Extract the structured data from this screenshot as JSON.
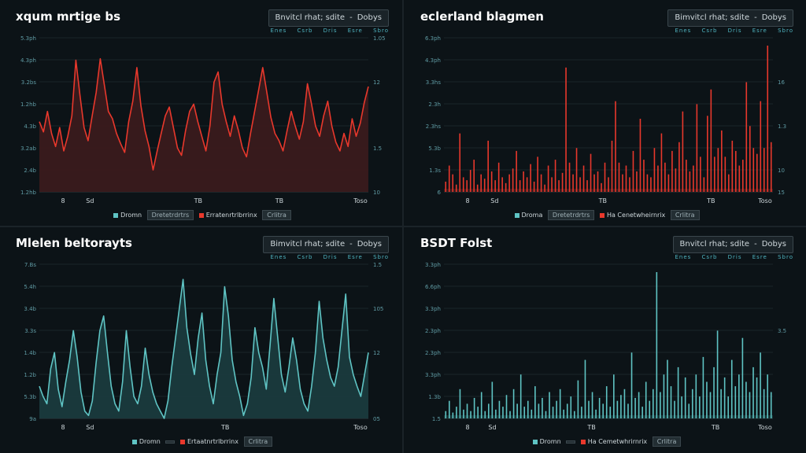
{
  "panels": [
    {
      "title": "xqum mrtige bs",
      "range": {
        "label": "Bnvitcl rhat; sdite",
        "option": "Dobys"
      },
      "subrow": [
        "Enes",
        "Csrb",
        "Dris",
        "Esre",
        "Sbro"
      ],
      "legend": {
        "left_label": "Dromn",
        "left_chip": "Dretetrdrtrs",
        "right_label": "Erratenrtrlbrrinx",
        "right_chip": "Crlitra"
      },
      "accent": "#e8382c",
      "fill": "#3a1a1c",
      "chart_data": {
        "type": "area",
        "ylabels_left": [
          "5.3ph",
          "4.3ph",
          "3.2bs",
          "1.2hb",
          "4.3b",
          "3.2ab",
          "2.4b",
          "1.2hb"
        ],
        "ylabels_right": [
          "1.05",
          "",
          "12",
          "",
          "",
          "1.5",
          "",
          "10"
        ],
        "xlabels": [
          "8",
          "Sd",
          "",
          "",
          "",
          "TB",
          "",
          "",
          "TB",
          "",
          "",
          "Toso"
        ],
        "values": [
          0.48,
          0.41,
          0.55,
          0.4,
          0.31,
          0.44,
          0.28,
          0.38,
          0.52,
          0.9,
          0.66,
          0.44,
          0.35,
          0.52,
          0.68,
          0.91,
          0.73,
          0.55,
          0.5,
          0.4,
          0.33,
          0.27,
          0.48,
          0.62,
          0.85,
          0.59,
          0.42,
          0.31,
          0.15,
          0.28,
          0.4,
          0.52,
          0.58,
          0.44,
          0.3,
          0.25,
          0.42,
          0.55,
          0.6,
          0.48,
          0.38,
          0.28,
          0.45,
          0.75,
          0.82,
          0.6,
          0.48,
          0.38,
          0.52,
          0.42,
          0.3,
          0.24,
          0.4,
          0.55,
          0.7,
          0.85,
          0.68,
          0.51,
          0.4,
          0.35,
          0.28,
          0.42,
          0.55,
          0.45,
          0.36,
          0.48,
          0.74,
          0.6,
          0.45,
          0.38,
          0.52,
          0.62,
          0.45,
          0.34,
          0.28,
          0.4,
          0.31,
          0.5,
          0.38,
          0.47,
          0.61,
          0.72
        ]
      }
    },
    {
      "title": "eclerland blagmen",
      "range": {
        "label": "Bimvitcl rhat; sdite",
        "option": "Dobys"
      },
      "subrow": [
        "Enes",
        "Csrb",
        "Dris",
        "Esre",
        "Sbro"
      ],
      "legend": {
        "left_label": "Droma",
        "left_chip": "Dretetrdrtrs",
        "right_label": "Ha Cenetwheirnrix",
        "right_chip": "Crlitra"
      },
      "accent": "#e8382c",
      "fill": "#3a1a1c",
      "chart_data": {
        "type": "bar",
        "ylabels_left": [
          "6.3ph",
          "4.3ph",
          "3.3hs",
          "2.3h",
          "2.3hs",
          "5.3b",
          "1.3s",
          "6"
        ],
        "ylabels_right": [
          "",
          "",
          "16",
          "",
          "1.3",
          "",
          "10",
          "15"
        ],
        "xlabels": [
          "8",
          "Sd",
          "",
          "",
          "",
          "TB",
          "",
          "",
          "",
          "TB",
          "",
          "Toso"
        ],
        "values": [
          0.07,
          0.18,
          0.12,
          0.05,
          0.4,
          0.1,
          0.08,
          0.15,
          0.22,
          0.05,
          0.12,
          0.09,
          0.35,
          0.14,
          0.08,
          0.2,
          0.1,
          0.06,
          0.12,
          0.16,
          0.28,
          0.08,
          0.14,
          0.1,
          0.19,
          0.07,
          0.24,
          0.12,
          0.05,
          0.18,
          0.1,
          0.22,
          0.08,
          0.13,
          0.85,
          0.2,
          0.12,
          0.3,
          0.1,
          0.18,
          0.08,
          0.26,
          0.12,
          0.14,
          0.06,
          0.2,
          0.1,
          0.35,
          0.62,
          0.2,
          0.12,
          0.18,
          0.1,
          0.28,
          0.14,
          0.5,
          0.22,
          0.12,
          0.1,
          0.3,
          0.18,
          0.4,
          0.2,
          0.12,
          0.28,
          0.16,
          0.34,
          0.55,
          0.22,
          0.14,
          0.18,
          0.6,
          0.24,
          0.1,
          0.52,
          0.7,
          0.24,
          0.3,
          0.42,
          0.24,
          0.12,
          0.35,
          0.28,
          0.18,
          0.22,
          0.75,
          0.45,
          0.3,
          0.26,
          0.62,
          0.3,
          1.0,
          0.34
        ]
      }
    },
    {
      "title": "Mlelen beltorayts",
      "range": {
        "label": "Bimvitcl rhat; sdite",
        "option": "Dobys"
      },
      "subrow": [
        "Enes",
        "Csrb",
        "Dris",
        "Esre",
        "Sbro"
      ],
      "legend": {
        "left_label": "Dromn",
        "left_chip": "",
        "right_label": "Ertaatnrtrlbrrinx",
        "right_chip": "Crlitra"
      },
      "accent": "#5fc4c4",
      "fill": "#1a3a3d",
      "chart_data": {
        "type": "area",
        "ylabels_left": [
          "7.Bs",
          "5.4h",
          "3.4b",
          "3.3s",
          "1.4b",
          "1.2b",
          "5.3b",
          "9a"
        ],
        "ylabels_right": [
          "1.5",
          "",
          "105",
          "",
          "12",
          "",
          "",
          "05"
        ],
        "xlabels": [
          "8",
          "Sd",
          "",
          "",
          "",
          "",
          "TB",
          "",
          "",
          "",
          "",
          "Toso"
        ],
        "values": [
          0.22,
          0.15,
          0.1,
          0.34,
          0.45,
          0.2,
          0.08,
          0.25,
          0.4,
          0.6,
          0.42,
          0.18,
          0.05,
          0.02,
          0.12,
          0.38,
          0.6,
          0.7,
          0.45,
          0.22,
          0.1,
          0.05,
          0.25,
          0.6,
          0.35,
          0.15,
          0.1,
          0.22,
          0.48,
          0.3,
          0.18,
          0.1,
          0.05,
          0.0,
          0.12,
          0.35,
          0.55,
          0.75,
          0.95,
          0.62,
          0.44,
          0.3,
          0.55,
          0.72,
          0.4,
          0.22,
          0.1,
          0.3,
          0.45,
          0.9,
          0.7,
          0.4,
          0.25,
          0.15,
          0.02,
          0.1,
          0.28,
          0.62,
          0.45,
          0.35,
          0.2,
          0.5,
          0.82,
          0.56,
          0.3,
          0.18,
          0.35,
          0.55,
          0.4,
          0.2,
          0.1,
          0.05,
          0.22,
          0.45,
          0.8,
          0.55,
          0.4,
          0.28,
          0.22,
          0.35,
          0.6,
          0.85,
          0.42,
          0.3,
          0.22,
          0.15,
          0.3,
          0.45
        ]
      }
    },
    {
      "title": "BSDT Folst",
      "range": {
        "label": "Bnvitcl rhat; sdite",
        "option": "Dobys"
      },
      "subrow": [
        "Enes",
        "Csrb",
        "Dris",
        "Esre",
        "Sbro"
      ],
      "legend": {
        "left_label": "Dromn",
        "left_chip": "",
        "right_label": "Ha Cemetwhrirnrix",
        "right_chip": "Crlitra"
      },
      "accent": "#5fc4c4",
      "fill": "#173335",
      "chart_data": {
        "type": "bar",
        "ylabels_left": [
          "3.3ph",
          "6.6ph",
          "3.3ph",
          "2.3ph",
          "2.3ph",
          "3.3ph",
          "1.3b",
          "1.5"
        ],
        "ylabels_right": [
          "",
          "",
          "",
          "3.5",
          "",
          "",
          "",
          ""
        ],
        "xlabels": [
          "8",
          "Sd",
          "",
          "",
          "",
          "TB",
          "",
          "",
          "",
          "",
          "TB",
          "",
          "Toso"
        ],
        "values": [
          0.05,
          0.12,
          0.04,
          0.08,
          0.2,
          0.06,
          0.1,
          0.05,
          0.14,
          0.08,
          0.18,
          0.05,
          0.1,
          0.25,
          0.06,
          0.12,
          0.08,
          0.16,
          0.05,
          0.2,
          0.1,
          0.3,
          0.08,
          0.12,
          0.06,
          0.22,
          0.1,
          0.14,
          0.05,
          0.18,
          0.08,
          0.12,
          0.2,
          0.06,
          0.1,
          0.15,
          0.05,
          0.26,
          0.08,
          0.4,
          0.12,
          0.18,
          0.06,
          0.14,
          0.1,
          0.22,
          0.08,
          0.3,
          0.12,
          0.16,
          0.2,
          0.1,
          0.45,
          0.14,
          0.18,
          0.08,
          0.25,
          0.12,
          0.2,
          1.0,
          0.18,
          0.3,
          0.4,
          0.22,
          0.12,
          0.35,
          0.15,
          0.28,
          0.1,
          0.2,
          0.3,
          0.15,
          0.42,
          0.25,
          0.18,
          0.35,
          0.6,
          0.2,
          0.28,
          0.15,
          0.4,
          0.22,
          0.3,
          0.55,
          0.25,
          0.18,
          0.35,
          0.28,
          0.45,
          0.2,
          0.3,
          0.18
        ]
      }
    }
  ]
}
